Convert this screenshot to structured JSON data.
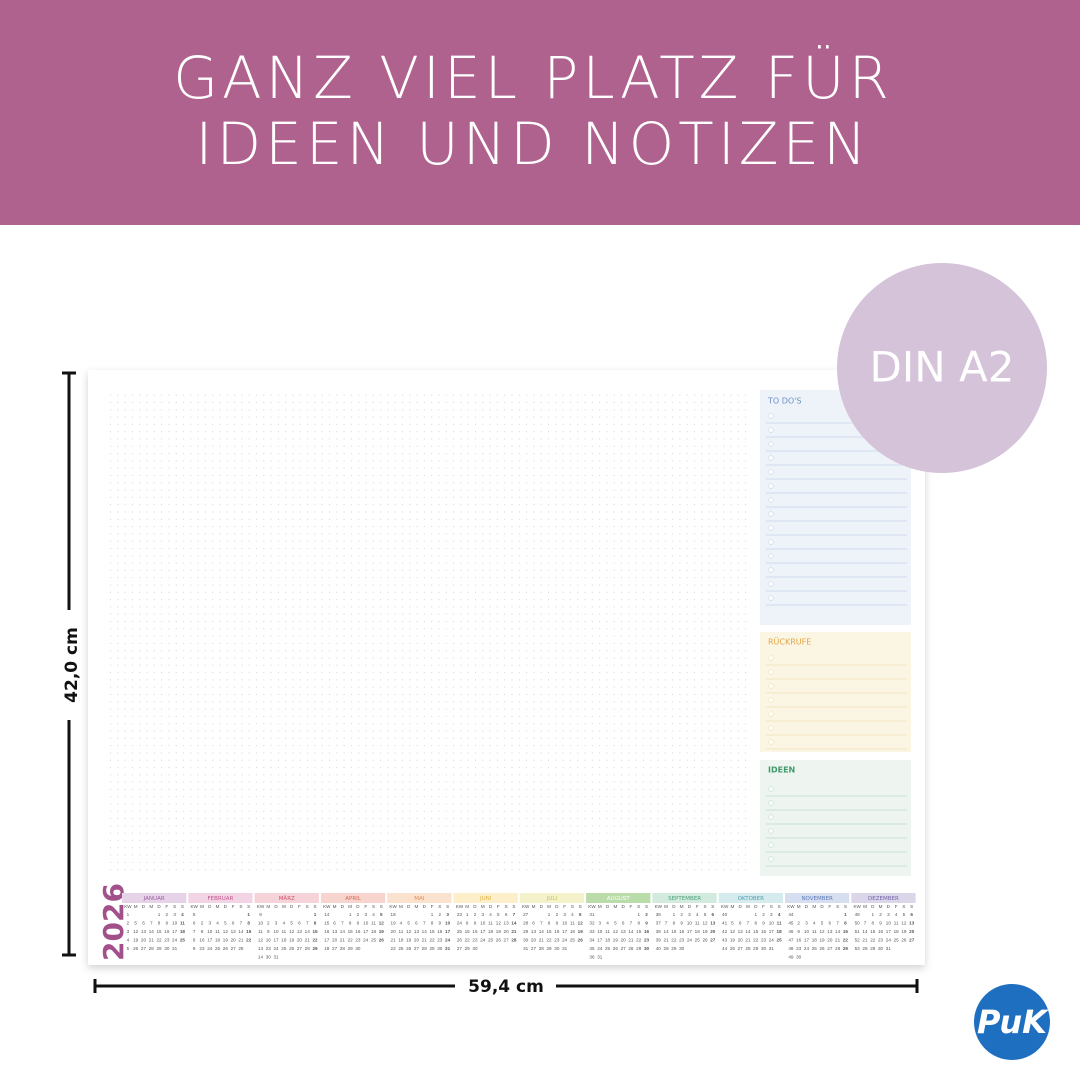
{
  "header": {
    "title_lines": [
      "GANZ VIEL PLATZ FÜR",
      "IDEEN UND NOTIZEN"
    ]
  },
  "badge": "DIN A2",
  "dimensions": {
    "height": "42,0 cm",
    "width": "59,4 cm"
  },
  "panels": [
    {
      "title": "TO DO'S"
    },
    {
      "title": "RÜCKRUFE"
    },
    {
      "title": "IDEEN"
    }
  ],
  "calendar": {
    "year": "2026",
    "weekday_header": [
      "KW",
      "M",
      "D",
      "M",
      "D",
      "F",
      "S",
      "S"
    ],
    "months": [
      {
        "name": "JANUAR",
        "weeks": [
          [
            1,
            null,
            null,
            null,
            1,
            2,
            3,
            4
          ],
          [
            2,
            5,
            6,
            7,
            8,
            9,
            10,
            11
          ],
          [
            3,
            12,
            13,
            14,
            15,
            16,
            17,
            18
          ],
          [
            4,
            19,
            20,
            21,
            22,
            23,
            24,
            25
          ],
          [
            5,
            26,
            27,
            28,
            29,
            30,
            31,
            null
          ]
        ]
      },
      {
        "name": "FEBRUAR",
        "weeks": [
          [
            5,
            null,
            null,
            null,
            null,
            null,
            null,
            1
          ],
          [
            6,
            2,
            3,
            4,
            5,
            6,
            7,
            8
          ],
          [
            7,
            9,
            10,
            11,
            12,
            13,
            14,
            15
          ],
          [
            8,
            16,
            17,
            18,
            19,
            20,
            21,
            22
          ],
          [
            9,
            23,
            24,
            25,
            26,
            27,
            28,
            null
          ]
        ]
      },
      {
        "name": "MÄRZ",
        "weeks": [
          [
            9,
            null,
            null,
            null,
            null,
            null,
            null,
            1
          ],
          [
            10,
            2,
            3,
            4,
            5,
            6,
            7,
            8
          ],
          [
            11,
            9,
            10,
            11,
            12,
            13,
            14,
            15
          ],
          [
            12,
            16,
            17,
            18,
            19,
            20,
            21,
            22
          ],
          [
            13,
            23,
            24,
            25,
            26,
            27,
            28,
            29
          ],
          [
            14,
            30,
            31,
            null,
            null,
            null,
            null,
            null
          ]
        ]
      },
      {
        "name": "APRIL",
        "weeks": [
          [
            14,
            null,
            null,
            1,
            2,
            3,
            4,
            5
          ],
          [
            15,
            6,
            7,
            8,
            9,
            10,
            11,
            12
          ],
          [
            16,
            13,
            14,
            15,
            16,
            17,
            18,
            19
          ],
          [
            17,
            20,
            21,
            22,
            23,
            24,
            25,
            26
          ],
          [
            18,
            27,
            28,
            29,
            30,
            null,
            null,
            null
          ]
        ]
      },
      {
        "name": "MAI",
        "weeks": [
          [
            18,
            null,
            null,
            null,
            null,
            1,
            2,
            3
          ],
          [
            19,
            4,
            5,
            6,
            7,
            8,
            9,
            10
          ],
          [
            20,
            11,
            12,
            13,
            14,
            15,
            16,
            17
          ],
          [
            21,
            18,
            19,
            20,
            21,
            22,
            23,
            24
          ],
          [
            22,
            25,
            26,
            27,
            28,
            29,
            30,
            31
          ]
        ]
      },
      {
        "name": "JUNI",
        "weeks": [
          [
            23,
            1,
            2,
            3,
            4,
            5,
            6,
            7
          ],
          [
            24,
            8,
            9,
            10,
            11,
            12,
            13,
            14
          ],
          [
            25,
            15,
            16,
            17,
            18,
            19,
            20,
            21
          ],
          [
            26,
            22,
            23,
            24,
            25,
            26,
            27,
            28
          ],
          [
            27,
            29,
            30,
            null,
            null,
            null,
            null,
            null
          ]
        ]
      },
      {
        "name": "JULI",
        "weeks": [
          [
            27,
            null,
            null,
            1,
            2,
            3,
            4,
            5
          ],
          [
            28,
            6,
            7,
            8,
            9,
            10,
            11,
            12
          ],
          [
            29,
            13,
            14,
            15,
            16,
            17,
            18,
            19
          ],
          [
            30,
            20,
            21,
            22,
            23,
            24,
            25,
            26
          ],
          [
            31,
            27,
            28,
            29,
            30,
            31,
            null,
            null
          ]
        ]
      },
      {
        "name": "AUGUST",
        "weeks": [
          [
            31,
            null,
            null,
            null,
            null,
            null,
            1,
            2
          ],
          [
            32,
            3,
            4,
            5,
            6,
            7,
            8,
            9
          ],
          [
            33,
            10,
            11,
            12,
            13,
            14,
            15,
            16
          ],
          [
            34,
            17,
            18,
            19,
            20,
            21,
            22,
            23
          ],
          [
            35,
            24,
            25,
            26,
            27,
            28,
            29,
            30
          ],
          [
            36,
            31,
            null,
            null,
            null,
            null,
            null,
            null
          ]
        ]
      },
      {
        "name": "SEPTEMBER",
        "weeks": [
          [
            36,
            null,
            1,
            2,
            3,
            4,
            5,
            6
          ],
          [
            37,
            7,
            8,
            9,
            10,
            11,
            12,
            13
          ],
          [
            38,
            14,
            15,
            16,
            17,
            18,
            19,
            20
          ],
          [
            39,
            21,
            22,
            23,
            24,
            25,
            26,
            27
          ],
          [
            40,
            28,
            29,
            30,
            null,
            null,
            null,
            null
          ]
        ]
      },
      {
        "name": "OKTOBER",
        "weeks": [
          [
            40,
            null,
            null,
            null,
            1,
            2,
            3,
            4
          ],
          [
            41,
            5,
            6,
            7,
            8,
            9,
            10,
            11
          ],
          [
            42,
            12,
            13,
            14,
            15,
            16,
            17,
            18
          ],
          [
            43,
            19,
            20,
            21,
            22,
            23,
            24,
            25
          ],
          [
            44,
            26,
            27,
            28,
            29,
            30,
            31,
            null
          ]
        ]
      },
      {
        "name": "NOVEMBER",
        "weeks": [
          [
            44,
            null,
            null,
            null,
            null,
            null,
            null,
            1
          ],
          [
            45,
            2,
            3,
            4,
            5,
            6,
            7,
            8
          ],
          [
            46,
            9,
            10,
            11,
            12,
            13,
            14,
            15
          ],
          [
            47,
            16,
            17,
            18,
            19,
            20,
            21,
            22
          ],
          [
            48,
            23,
            24,
            25,
            26,
            27,
            28,
            29
          ],
          [
            49,
            30,
            null,
            null,
            null,
            null,
            null,
            null
          ]
        ]
      },
      {
        "name": "DEZEMBER",
        "weeks": [
          [
            49,
            null,
            1,
            2,
            3,
            4,
            5,
            6
          ],
          [
            50,
            7,
            8,
            9,
            10,
            11,
            12,
            13
          ],
          [
            51,
            14,
            15,
            16,
            17,
            18,
            19,
            20
          ],
          [
            52,
            21,
            22,
            23,
            24,
            25,
            26,
            27
          ],
          [
            53,
            28,
            29,
            30,
            31,
            null,
            null,
            null
          ]
        ]
      }
    ]
  },
  "logo": "PuK"
}
